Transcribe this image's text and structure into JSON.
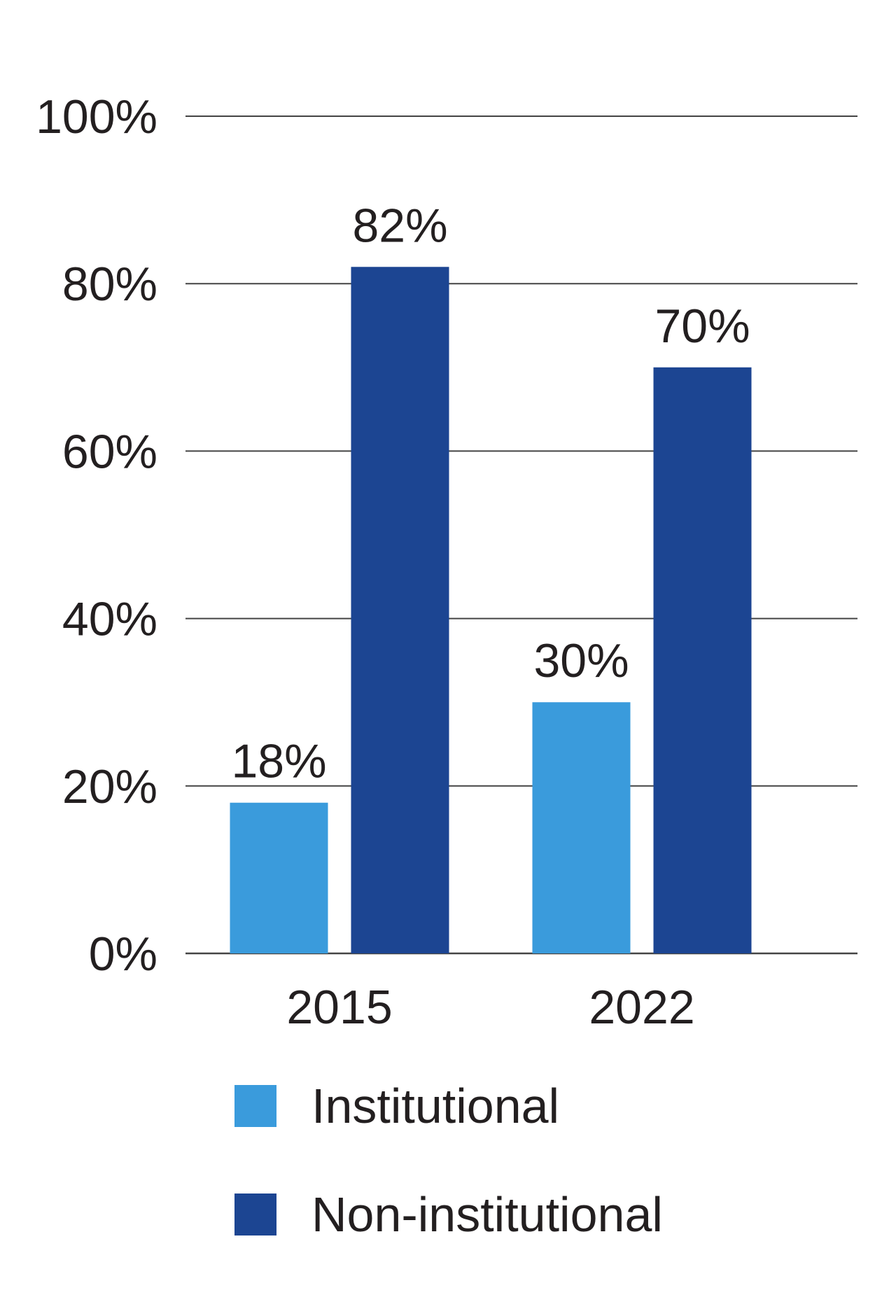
{
  "chart_data": {
    "type": "bar",
    "categories": [
      "2015",
      "2022"
    ],
    "series": [
      {
        "name": "Institutional",
        "values": [
          18,
          30
        ],
        "labels": [
          "18%",
          "30%"
        ],
        "color": "#3a9bdc"
      },
      {
        "name": "Non-institutional",
        "values": [
          82,
          70
        ],
        "labels": [
          "82%",
          "70%"
        ],
        "color": "#1c4592"
      }
    ],
    "ylim": [
      0,
      100
    ],
    "yticks": [
      0,
      20,
      40,
      60,
      80,
      100
    ],
    "ytick_labels": [
      "0%",
      "20%",
      "40%",
      "60%",
      "80%",
      "100%"
    ],
    "grid": true,
    "legend_placement": "bottom",
    "title": "",
    "xlabel": "",
    "ylabel": ""
  },
  "colors": {
    "text": "#231f20",
    "gridline": "#444444"
  }
}
